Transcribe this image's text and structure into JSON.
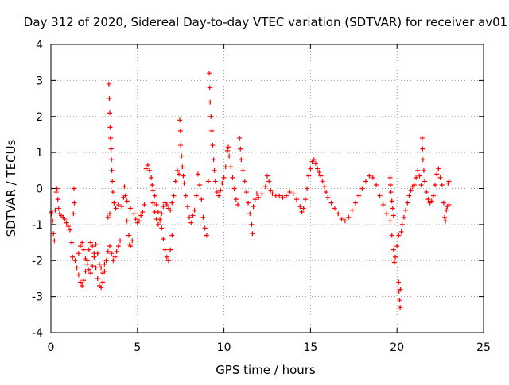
{
  "colors": {
    "series": "#ff0000",
    "axis": "#000000",
    "grid": "#a0a0a0",
    "background": "#ffffff"
  },
  "chart_data": {
    "type": "scatter",
    "title": "Day 312 of 2020, Sidereal Day-to-day VTEC variation (SDTVAR) for receiver av01",
    "xlabel": "GPS time / hours",
    "ylabel": "SDTVAR / TECUs",
    "xlim": [
      0,
      25
    ],
    "ylim": [
      -4,
      4
    ],
    "grid": true,
    "marker": "+",
    "xticks": [
      {
        "value": 0,
        "label": "0"
      },
      {
        "value": 5,
        "label": "5"
      },
      {
        "value": 10,
        "label": "10"
      },
      {
        "value": 15,
        "label": "15"
      },
      {
        "value": 20,
        "label": "20"
      },
      {
        "value": 25,
        "label": "25"
      }
    ],
    "yticks": [
      {
        "value": -4,
        "label": "-4"
      },
      {
        "value": -3,
        "label": "-3"
      },
      {
        "value": -2,
        "label": "-2"
      },
      {
        "value": -1,
        "label": "-1"
      },
      {
        "value": 0,
        "label": "0"
      },
      {
        "value": 1,
        "label": "1"
      },
      {
        "value": 2,
        "label": "2"
      },
      {
        "value": 3,
        "label": "3"
      },
      {
        "value": 4,
        "label": "4"
      }
    ],
    "series": [
      {
        "name": "av01",
        "points": [
          [
            0.0,
            -0.65
          ],
          [
            0.05,
            -0.7
          ],
          [
            0.1,
            -0.9
          ],
          [
            0.15,
            -1.25
          ],
          [
            0.2,
            -1.45
          ],
          [
            0.25,
            -0.6
          ],
          [
            0.3,
            -0.1
          ],
          [
            0.35,
            0.0
          ],
          [
            0.4,
            -0.3
          ],
          [
            0.45,
            -0.55
          ],
          [
            0.5,
            -0.7
          ],
          [
            0.6,
            -0.75
          ],
          [
            0.7,
            -0.8
          ],
          [
            0.8,
            -0.85
          ],
          [
            0.9,
            -0.95
          ],
          [
            1.0,
            -1.05
          ],
          [
            1.1,
            -1.15
          ],
          [
            1.2,
            -1.5
          ],
          [
            1.25,
            -1.9
          ],
          [
            1.3,
            -0.7
          ],
          [
            1.33,
            0.0
          ],
          [
            1.36,
            -0.4
          ],
          [
            1.4,
            -2.0
          ],
          [
            1.5,
            -2.2
          ],
          [
            1.6,
            -2.4
          ],
          [
            1.7,
            -2.6
          ],
          [
            1.8,
            -2.7
          ],
          [
            1.9,
            -2.55
          ],
          [
            2.0,
            -2.3
          ],
          [
            2.1,
            -2.0
          ],
          [
            2.2,
            -1.7
          ],
          [
            2.3,
            -1.5
          ],
          [
            2.4,
            -1.6
          ],
          [
            2.5,
            -1.9
          ],
          [
            2.6,
            -2.2
          ],
          [
            2.7,
            -2.5
          ],
          [
            2.8,
            -2.7
          ],
          [
            2.9,
            -2.75
          ],
          [
            3.0,
            -2.6
          ],
          [
            3.1,
            -2.3
          ],
          [
            3.2,
            -2.0
          ],
          [
            3.3,
            -1.75
          ],
          [
            3.4,
            -1.6
          ],
          [
            3.5,
            -1.8
          ],
          [
            3.6,
            -2.0
          ],
          [
            3.7,
            -1.9
          ],
          [
            3.8,
            -1.75
          ],
          [
            3.9,
            -1.6
          ],
          [
            4.0,
            -1.45
          ],
          [
            1.6,
            -1.8
          ],
          [
            1.7,
            -1.6
          ],
          [
            1.8,
            -1.5
          ],
          [
            1.9,
            -1.7
          ],
          [
            2.0,
            -1.95
          ],
          [
            2.1,
            -2.1
          ],
          [
            2.2,
            -2.25
          ],
          [
            2.3,
            -2.35
          ],
          [
            2.4,
            -2.15
          ],
          [
            2.5,
            -1.8
          ],
          [
            2.6,
            -1.55
          ],
          [
            2.7,
            -1.8
          ],
          [
            2.8,
            -2.1
          ],
          [
            2.9,
            -2.2
          ],
          [
            3.0,
            -2.35
          ],
          [
            3.1,
            -2.1
          ],
          [
            3.3,
            -0.8
          ],
          [
            3.4,
            -0.7
          ],
          [
            3.35,
            2.9
          ],
          [
            3.38,
            2.5
          ],
          [
            3.4,
            2.1
          ],
          [
            3.42,
            1.7
          ],
          [
            3.45,
            1.4
          ],
          [
            3.48,
            1.1
          ],
          [
            3.5,
            0.8
          ],
          [
            3.52,
            0.5
          ],
          [
            3.55,
            0.2
          ],
          [
            3.58,
            -0.1
          ],
          [
            3.65,
            -0.4
          ],
          [
            3.75,
            -0.55
          ],
          [
            3.9,
            -0.45
          ],
          [
            4.1,
            -0.5
          ],
          [
            4.2,
            -0.25
          ],
          [
            4.25,
            0.05
          ],
          [
            4.3,
            -0.2
          ],
          [
            4.4,
            -0.9
          ],
          [
            4.5,
            -1.3
          ],
          [
            4.55,
            -1.55
          ],
          [
            4.6,
            -1.6
          ],
          [
            4.7,
            -1.45
          ],
          [
            4.4,
            -0.35
          ],
          [
            4.6,
            -0.55
          ],
          [
            4.8,
            -0.7
          ],
          [
            4.9,
            -0.85
          ],
          [
            5.0,
            -0.95
          ],
          [
            5.1,
            -0.9
          ],
          [
            5.2,
            -0.75
          ],
          [
            5.3,
            -0.65
          ],
          [
            5.4,
            -0.45
          ],
          [
            5.5,
            0.55
          ],
          [
            5.6,
            0.65
          ],
          [
            5.7,
            0.5
          ],
          [
            5.8,
            0.3
          ],
          [
            5.85,
            0.1
          ],
          [
            5.9,
            -0.05
          ],
          [
            6.0,
            -0.2
          ],
          [
            6.1,
            -0.45
          ],
          [
            6.2,
            -0.65
          ],
          [
            6.3,
            -0.85
          ],
          [
            6.4,
            -1.1
          ],
          [
            6.5,
            -1.4
          ],
          [
            6.6,
            -1.7
          ],
          [
            6.7,
            -1.9
          ],
          [
            6.8,
            -2.0
          ],
          [
            6.9,
            -1.7
          ],
          [
            7.0,
            -1.3
          ],
          [
            5.9,
            -0.4
          ],
          [
            6.0,
            -0.65
          ],
          [
            6.1,
            -0.85
          ],
          [
            6.2,
            -1.0
          ],
          [
            6.3,
            -0.9
          ],
          [
            6.4,
            -0.7
          ],
          [
            6.5,
            -0.5
          ],
          [
            6.6,
            -0.4
          ],
          [
            6.7,
            -0.45
          ],
          [
            6.8,
            -0.55
          ],
          [
            6.9,
            -0.6
          ],
          [
            7.0,
            -0.4
          ],
          [
            7.1,
            -0.2
          ],
          [
            7.2,
            0.2
          ],
          [
            7.3,
            0.5
          ],
          [
            7.4,
            0.4
          ],
          [
            7.45,
            1.9
          ],
          [
            7.48,
            1.6
          ],
          [
            7.5,
            1.2
          ],
          [
            7.55,
            0.9
          ],
          [
            7.6,
            0.6
          ],
          [
            7.65,
            0.35
          ],
          [
            7.7,
            0.15
          ],
          [
            7.8,
            -0.2
          ],
          [
            7.9,
            -0.5
          ],
          [
            8.0,
            -0.8
          ],
          [
            8.1,
            -0.95
          ],
          [
            8.2,
            -0.75
          ],
          [
            8.3,
            -0.6
          ],
          [
            8.4,
            -0.2
          ],
          [
            8.5,
            0.4
          ],
          [
            8.6,
            0.1
          ],
          [
            8.7,
            -0.3
          ],
          [
            8.8,
            -0.8
          ],
          [
            8.9,
            -1.1
          ],
          [
            9.0,
            -1.3
          ],
          [
            9.1,
            0.2
          ],
          [
            9.15,
            3.2
          ],
          [
            9.18,
            2.8
          ],
          [
            9.2,
            2.4
          ],
          [
            9.25,
            2.0
          ],
          [
            9.3,
            1.6
          ],
          [
            9.35,
            1.2
          ],
          [
            9.4,
            0.8
          ],
          [
            9.45,
            0.5
          ],
          [
            9.5,
            0.2
          ],
          [
            9.6,
            -0.1
          ],
          [
            9.7,
            -0.2
          ],
          [
            9.8,
            -0.05
          ],
          [
            9.9,
            0.15
          ],
          [
            10.0,
            0.3
          ],
          [
            10.1,
            0.6
          ],
          [
            10.2,
            1.05
          ],
          [
            10.25,
            1.15
          ],
          [
            10.3,
            0.9
          ],
          [
            10.4,
            0.6
          ],
          [
            10.5,
            0.3
          ],
          [
            10.6,
            0.0
          ],
          [
            10.7,
            -0.3
          ],
          [
            10.8,
            -0.45
          ],
          [
            10.9,
            1.4
          ],
          [
            10.95,
            1.1
          ],
          [
            11.0,
            0.8
          ],
          [
            11.1,
            0.5
          ],
          [
            11.2,
            0.2
          ],
          [
            11.3,
            -0.1
          ],
          [
            11.4,
            -0.4
          ],
          [
            11.5,
            -0.7
          ],
          [
            11.6,
            -1.0
          ],
          [
            11.65,
            -1.25
          ],
          [
            11.7,
            -0.5
          ],
          [
            11.8,
            -0.3
          ],
          [
            11.9,
            -0.15
          ],
          [
            12.0,
            -0.25
          ],
          [
            12.2,
            -0.15
          ],
          [
            12.4,
            0.05
          ],
          [
            12.5,
            0.35
          ],
          [
            12.6,
            0.2
          ],
          [
            12.7,
            -0.05
          ],
          [
            12.8,
            -0.15
          ],
          [
            13.0,
            -0.2
          ],
          [
            13.2,
            -0.2
          ],
          [
            13.4,
            -0.25
          ],
          [
            13.6,
            -0.2
          ],
          [
            13.8,
            -0.1
          ],
          [
            14.0,
            -0.15
          ],
          [
            14.2,
            -0.3
          ],
          [
            14.4,
            -0.5
          ],
          [
            14.5,
            -0.65
          ],
          [
            14.6,
            -0.55
          ],
          [
            14.7,
            -0.3
          ],
          [
            14.8,
            0.0
          ],
          [
            14.9,
            0.35
          ],
          [
            15.0,
            0.55
          ],
          [
            15.1,
            0.75
          ],
          [
            15.2,
            0.8
          ],
          [
            15.3,
            0.7
          ],
          [
            15.4,
            0.55
          ],
          [
            15.5,
            0.45
          ],
          [
            15.6,
            0.35
          ],
          [
            15.7,
            0.2
          ],
          [
            15.8,
            0.05
          ],
          [
            15.9,
            -0.1
          ],
          [
            16.0,
            -0.25
          ],
          [
            16.2,
            -0.4
          ],
          [
            16.4,
            -0.55
          ],
          [
            16.6,
            -0.7
          ],
          [
            16.8,
            -0.85
          ],
          [
            17.0,
            -0.9
          ],
          [
            17.2,
            -0.8
          ],
          [
            17.4,
            -0.6
          ],
          [
            17.6,
            -0.4
          ],
          [
            17.8,
            -0.2
          ],
          [
            18.0,
            0.0
          ],
          [
            18.2,
            0.2
          ],
          [
            18.4,
            0.35
          ],
          [
            18.6,
            0.3
          ],
          [
            18.8,
            0.1
          ],
          [
            19.0,
            -0.2
          ],
          [
            19.2,
            -0.45
          ],
          [
            19.4,
            -0.7
          ],
          [
            19.6,
            -0.9
          ],
          [
            19.7,
            -1.3
          ],
          [
            19.8,
            -1.7
          ],
          [
            19.85,
            -2.05
          ],
          [
            19.9,
            -1.9
          ],
          [
            20.0,
            -1.6
          ],
          [
            20.1,
            -1.3
          ],
          [
            19.6,
            0.3
          ],
          [
            19.62,
            0.1
          ],
          [
            19.65,
            -0.1
          ],
          [
            19.7,
            -0.35
          ],
          [
            19.75,
            -0.55
          ],
          [
            19.8,
            -0.75
          ],
          [
            20.1,
            -2.6
          ],
          [
            20.12,
            -2.85
          ],
          [
            20.15,
            -3.1
          ],
          [
            20.18,
            -3.3
          ],
          [
            20.2,
            -2.8
          ],
          [
            20.25,
            -1.2
          ],
          [
            20.3,
            -1.0
          ],
          [
            20.4,
            -0.8
          ],
          [
            20.5,
            -0.6
          ],
          [
            20.6,
            -0.4
          ],
          [
            20.7,
            -0.2
          ],
          [
            20.8,
            -0.05
          ],
          [
            20.9,
            0.05
          ],
          [
            21.0,
            0.1
          ],
          [
            21.1,
            0.3
          ],
          [
            21.2,
            0.5
          ],
          [
            21.3,
            0.35
          ],
          [
            21.4,
            0.1
          ],
          [
            21.45,
            1.4
          ],
          [
            21.48,
            1.1
          ],
          [
            21.5,
            0.8
          ],
          [
            21.55,
            0.5
          ],
          [
            21.6,
            0.2
          ],
          [
            21.7,
            -0.1
          ],
          [
            21.8,
            -0.3
          ],
          [
            21.9,
            -0.4
          ],
          [
            22.0,
            -0.35
          ],
          [
            22.1,
            -0.2
          ],
          [
            22.2,
            0.1
          ],
          [
            22.3,
            0.4
          ],
          [
            22.4,
            0.55
          ],
          [
            22.5,
            0.3
          ],
          [
            22.6,
            0.1
          ],
          [
            22.7,
            -0.4
          ],
          [
            22.75,
            -0.8
          ],
          [
            22.8,
            -0.9
          ],
          [
            22.85,
            -0.6
          ],
          [
            22.9,
            -0.5
          ],
          [
            22.95,
            0.15
          ],
          [
            23.0,
            0.2
          ],
          [
            23.0,
            -0.45
          ]
        ]
      }
    ]
  }
}
